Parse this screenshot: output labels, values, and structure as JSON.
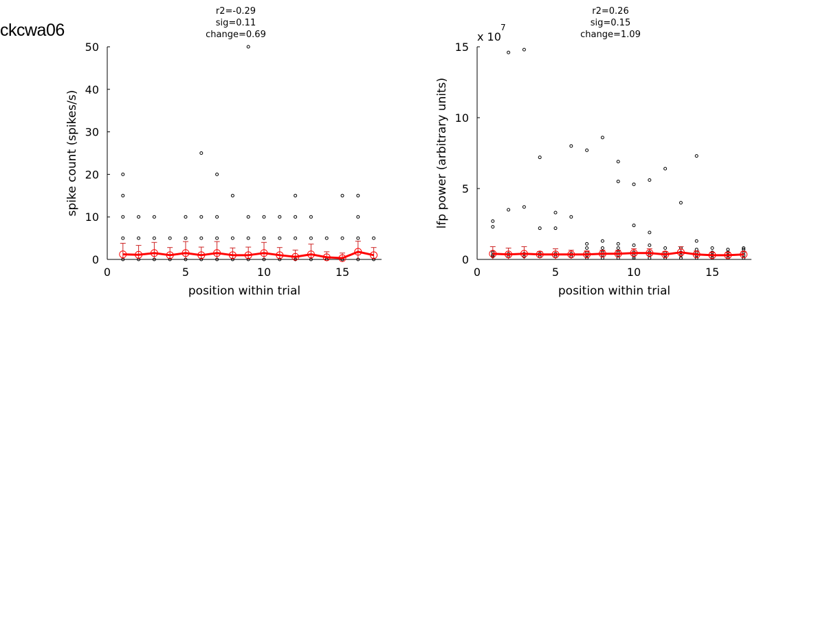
{
  "page": {
    "title": "ckcwa06"
  },
  "colors": {
    "points": "#000000",
    "mean": "#ff0000",
    "errorbar": "#cc2222",
    "axis": "#000000"
  },
  "chart_data": [
    {
      "type": "scatter",
      "annotations": [
        "r2=-0.29",
        "sig=0.11",
        "change=0.69"
      ],
      "xlabel": "position within trial",
      "ylabel": "spike count (spikes/s)",
      "xlim": [
        0,
        17.5
      ],
      "ylim": [
        0,
        50
      ],
      "xticks": [
        0,
        5,
        10,
        15
      ],
      "yticks": [
        0,
        10,
        20,
        30,
        40,
        50
      ],
      "scale_label": "",
      "grid": false,
      "series": [
        {
          "kind": "trial-points",
          "points": [
            [
              1,
              0
            ],
            [
              1,
              5
            ],
            [
              1,
              10
            ],
            [
              1,
              15
            ],
            [
              1,
              20
            ],
            [
              2,
              0
            ],
            [
              2,
              5
            ],
            [
              2,
              10
            ],
            [
              3,
              0
            ],
            [
              3,
              5
            ],
            [
              3,
              10
            ],
            [
              4,
              0
            ],
            [
              4,
              5
            ],
            [
              5,
              0
            ],
            [
              5,
              5
            ],
            [
              5,
              10
            ],
            [
              6,
              0
            ],
            [
              6,
              5
            ],
            [
              6,
              10
            ],
            [
              6,
              25
            ],
            [
              7,
              0
            ],
            [
              7,
              5
            ],
            [
              7,
              10
            ],
            [
              7,
              20
            ],
            [
              8,
              0
            ],
            [
              8,
              5
            ],
            [
              8,
              15
            ],
            [
              9,
              0
            ],
            [
              9,
              5
            ],
            [
              9,
              10
            ],
            [
              9,
              50
            ],
            [
              10,
              0
            ],
            [
              10,
              5
            ],
            [
              10,
              10
            ],
            [
              11,
              0
            ],
            [
              11,
              5
            ],
            [
              11,
              10
            ],
            [
              12,
              0
            ],
            [
              12,
              5
            ],
            [
              12,
              10
            ],
            [
              12,
              15
            ],
            [
              13,
              0
            ],
            [
              13,
              5
            ],
            [
              13,
              10
            ],
            [
              14,
              0
            ],
            [
              14,
              5
            ],
            [
              15,
              0
            ],
            [
              15,
              5
            ],
            [
              15,
              15
            ],
            [
              16,
              0
            ],
            [
              16,
              5
            ],
            [
              16,
              10
            ],
            [
              16,
              15
            ],
            [
              17,
              0
            ],
            [
              17,
              5
            ]
          ]
        },
        {
          "kind": "mean-with-error",
          "x": [
            1,
            2,
            3,
            4,
            5,
            6,
            7,
            8,
            9,
            10,
            11,
            12,
            13,
            14,
            15,
            16,
            17
          ],
          "mean": [
            1.2,
            1.1,
            1.5,
            1.0,
            1.5,
            1.0,
            1.5,
            1.0,
            1.0,
            1.5,
            1.0,
            0.6,
            1.2,
            0.5,
            0.3,
            1.8,
            1.0
          ],
          "err": [
            2.6,
            2.2,
            2.5,
            1.8,
            2.7,
            1.9,
            2.7,
            1.7,
            1.9,
            2.5,
            1.8,
            1.6,
            2.4,
            1.3,
            1.2,
            2.5,
            1.8
          ]
        }
      ]
    },
    {
      "type": "scatter",
      "annotations": [
        "r2=0.26",
        "sig=0.15",
        "change=1.09"
      ],
      "xlabel": "position within trial",
      "ylabel": "lfp power (arbitrary units)",
      "xlim": [
        0,
        17.5
      ],
      "ylim": [
        0,
        15
      ],
      "xticks": [
        0,
        5,
        10,
        15
      ],
      "yticks": [
        0,
        5,
        10,
        15
      ],
      "scale_label": "x 10",
      "scale_exp": "7",
      "grid": false,
      "series": [
        {
          "kind": "trial-points",
          "points": [
            [
              1,
              0.2
            ],
            [
              1,
              0.3
            ],
            [
              1,
              0.5
            ],
            [
              1,
              2.3
            ],
            [
              1,
              2.7
            ],
            [
              2,
              0.2
            ],
            [
              2,
              0.4
            ],
            [
              2,
              3.5
            ],
            [
              2,
              14.6
            ],
            [
              3,
              0.2
            ],
            [
              3,
              0.4
            ],
            [
              3,
              3.7
            ],
            [
              3,
              14.8
            ],
            [
              4,
              0.2
            ],
            [
              4,
              0.4
            ],
            [
              4,
              2.2
            ],
            [
              4,
              7.2
            ],
            [
              5,
              0.2
            ],
            [
              5,
              0.4
            ],
            [
              5,
              2.2
            ],
            [
              5,
              3.3
            ],
            [
              6,
              0.2
            ],
            [
              6,
              0.4
            ],
            [
              6,
              3.0
            ],
            [
              6,
              8.0
            ],
            [
              7,
              0.1
            ],
            [
              7,
              0.3
            ],
            [
              7,
              0.5
            ],
            [
              7,
              0.8
            ],
            [
              7,
              1.1
            ],
            [
              7,
              7.7
            ],
            [
              8,
              0.1
            ],
            [
              8,
              0.3
            ],
            [
              8,
              0.5
            ],
            [
              8,
              0.8
            ],
            [
              8,
              1.3
            ],
            [
              8,
              8.6
            ],
            [
              9,
              0.1
            ],
            [
              9,
              0.3
            ],
            [
              9,
              0.5
            ],
            [
              9,
              0.8
            ],
            [
              9,
              1.1
            ],
            [
              9,
              5.5
            ],
            [
              9,
              6.9
            ],
            [
              10,
              0.1
            ],
            [
              10,
              0.3
            ],
            [
              10,
              0.5
            ],
            [
              10,
              1.0
            ],
            [
              10,
              2.4
            ],
            [
              10,
              5.3
            ],
            [
              11,
              0.1
            ],
            [
              11,
              0.3
            ],
            [
              11,
              0.5
            ],
            [
              11,
              1.0
            ],
            [
              11,
              1.9
            ],
            [
              11,
              5.6
            ],
            [
              12,
              0.1
            ],
            [
              12,
              0.3
            ],
            [
              12,
              0.5
            ],
            [
              12,
              0.8
            ],
            [
              12,
              6.4
            ],
            [
              13,
              0.1
            ],
            [
              13,
              0.3
            ],
            [
              13,
              0.5
            ],
            [
              13,
              0.8
            ],
            [
              13,
              4.0
            ],
            [
              14,
              0.1
            ],
            [
              14,
              0.3
            ],
            [
              14,
              0.5
            ],
            [
              14,
              0.7
            ],
            [
              14,
              1.3
            ],
            [
              14,
              7.3
            ],
            [
              15,
              0.1
            ],
            [
              15,
              0.3
            ],
            [
              15,
              0.5
            ],
            [
              15,
              0.8
            ],
            [
              16,
              0.1
            ],
            [
              16,
              0.3
            ],
            [
              16,
              0.5
            ],
            [
              16,
              0.7
            ],
            [
              17,
              0.1
            ],
            [
              17,
              0.3
            ],
            [
              17,
              0.5
            ],
            [
              17,
              0.7
            ],
            [
              17,
              0.8
            ]
          ]
        },
        {
          "kind": "mean-with-error",
          "x": [
            1,
            2,
            3,
            4,
            5,
            6,
            7,
            8,
            9,
            10,
            11,
            12,
            13,
            14,
            15,
            16,
            17
          ],
          "mean": [
            0.4,
            0.35,
            0.4,
            0.35,
            0.35,
            0.35,
            0.35,
            0.4,
            0.4,
            0.45,
            0.45,
            0.35,
            0.5,
            0.35,
            0.3,
            0.3,
            0.35
          ],
          "err": [
            0.5,
            0.45,
            0.5,
            0.2,
            0.4,
            0.3,
            0.25,
            0.25,
            0.25,
            0.3,
            0.3,
            0.2,
            0.4,
            0.25,
            0.2,
            0.2,
            0.2
          ]
        }
      ]
    }
  ]
}
